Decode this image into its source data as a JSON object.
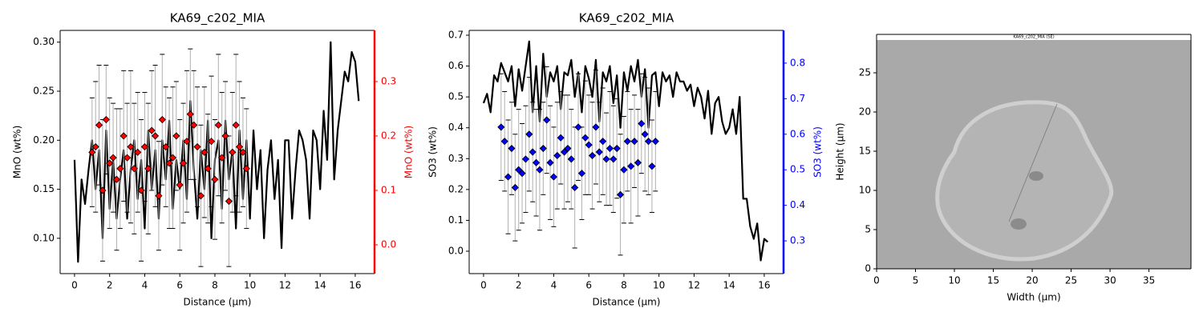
{
  "chart_data": [
    {
      "type": "line",
      "title": "KA69_c202_MIA",
      "xlabel": "Distance (µm)",
      "ylabel": "MnO (wt%)",
      "y2label": "MnO (wt%)",
      "xlim": [
        -0.82,
        17.1
      ],
      "ylim": [
        0.064,
        0.312
      ],
      "y2lim": [
        -0.053,
        0.394
      ],
      "xticks": [
        0,
        2,
        4,
        6,
        8,
        10,
        12,
        14,
        16
      ],
      "yticks": [
        {
          "value": 0.1,
          "label": "0.10"
        },
        0.15,
        {
          "value": 0.2,
          "label": "0.20"
        },
        0.25,
        {
          "value": 0.3,
          "label": "0.30"
        }
      ],
      "y2ticks": [
        {
          "value": 0,
          "label": "0.0"
        },
        0.1,
        0.2,
        0.3
      ],
      "series": [
        {
          "color": "#000000",
          "x": [
            0,
            0.2,
            0.4,
            0.6,
            0.8,
            1,
            1.2,
            1.4,
            1.6,
            1.8,
            2,
            2.2,
            2.4,
            2.6,
            2.8,
            3,
            3.2,
            3.4,
            3.6,
            3.8,
            4,
            4.2,
            4.4,
            4.6,
            4.8,
            5,
            5.2,
            5.4,
            5.6,
            5.8,
            6,
            6.2,
            6.4,
            6.6,
            6.8,
            7,
            7.2,
            7.4,
            7.6,
            7.8,
            8,
            8.2,
            8.4,
            8.6,
            8.8,
            9,
            9.2,
            9.4,
            9.6,
            9.8,
            10,
            10.2,
            10.4,
            10.6,
            10.8,
            11,
            11.2,
            11.4,
            11.6,
            11.8,
            12,
            12.2,
            12.4,
            12.6,
            12.8,
            13,
            13.2,
            13.4,
            13.6,
            13.8,
            14,
            14.2,
            14.4,
            14.6,
            14.8,
            15,
            15.2,
            15.4,
            15.6,
            15.8,
            16,
            16.2
          ],
          "values": [
            0.18,
            0.076,
            0.16,
            0.135,
            0.17,
            0.2,
            0.15,
            0.19,
            0.1,
            0.21,
            0.13,
            0.18,
            0.12,
            0.16,
            0.19,
            0.12,
            0.17,
            0.2,
            0.14,
            0.18,
            0.11,
            0.21,
            0.15,
            0.19,
            0.12,
            0.2,
            0.16,
            0.22,
            0.13,
            0.18,
            0.15,
            0.2,
            0.14,
            0.24,
            0.17,
            0.12,
            0.19,
            0.15,
            0.22,
            0.1,
            0.18,
            0.2,
            0.13,
            0.22,
            0.16,
            0.19,
            0.11,
            0.21,
            0.14,
            0.2,
            0.12,
            0.21,
            0.15,
            0.19,
            0.1,
            0.17,
            0.2,
            0.14,
            0.18,
            0.09,
            0.2,
            0.2,
            0.12,
            0.17,
            0.21,
            0.2,
            0.18,
            0.12,
            0.21,
            0.2,
            0.15,
            0.23,
            0.18,
            0.3,
            0.16,
            0.21,
            0.24,
            0.27,
            0.26,
            0.29,
            0.28,
            0.24
          ]
        },
        {
          "color": "#ff0000",
          "axis": "y2",
          "marker": "diamond",
          "x": [
            1,
            1.2,
            1.4,
            1.6,
            1.8,
            2,
            2.2,
            2.4,
            2.6,
            2.8,
            3,
            3.2,
            3.4,
            3.6,
            3.8,
            4,
            4.2,
            4.4,
            4.6,
            4.8,
            5,
            5.2,
            5.4,
            5.6,
            5.8,
            6,
            6.2,
            6.4,
            6.6,
            6.8,
            7,
            7.2,
            7.4,
            7.6,
            7.8,
            8,
            8.2,
            8.4,
            8.6,
            8.8,
            9,
            9.2,
            9.4,
            9.6,
            9.8
          ],
          "values": [
            0.17,
            0.18,
            0.22,
            0.1,
            0.23,
            0.15,
            0.16,
            0.12,
            0.14,
            0.2,
            0.16,
            0.18,
            0.14,
            0.17,
            0.1,
            0.18,
            0.14,
            0.21,
            0.2,
            0.09,
            0.23,
            0.18,
            0.15,
            0.16,
            0.2,
            0.11,
            0.15,
            0.19,
            0.24,
            0.22,
            0.18,
            0.09,
            0.17,
            0.14,
            0.19,
            0.12,
            0.22,
            0.16,
            0.2,
            0.08,
            0.17,
            0.22,
            0.18,
            0.17,
            0.14
          ],
          "errors": [
            0.1,
            0.12,
            0.11,
            0.13,
            0.1,
            0.12,
            0.1,
            0.13,
            0.11,
            0.12,
            0.1,
            0.14,
            0.12,
            0.11,
            0.13,
            0.1,
            0.12,
            0.11,
            0.13,
            0.1,
            0.12,
            0.11,
            0.12,
            0.13,
            0.1,
            0.12,
            0.11,
            0.13,
            0.12,
            0.1,
            0.11,
            0.13,
            0.12,
            0.1,
            0.12,
            0.11,
            0.13,
            0.12,
            0.1,
            0.12,
            0.11,
            0.13,
            0.12,
            0.1,
            0.11
          ]
        }
      ]
    },
    {
      "type": "line",
      "title": "KA69_c202_MIA",
      "xlabel": "Distance (µm)",
      "ylabel": "SO3 (wt%)",
      "y2label": "SO3 (wt%)",
      "xlim": [
        -0.82,
        17.1
      ],
      "ylim": [
        -0.0726,
        0.7156
      ],
      "y2lim": [
        0.208,
        0.892
      ],
      "xticks": [
        0,
        2,
        4,
        6,
        8,
        10,
        12,
        14,
        16
      ],
      "yticks": [
        {
          "value": 0,
          "label": "0.0"
        },
        0.1,
        0.2,
        0.3,
        0.4,
        0.5,
        0.6,
        0.7
      ],
      "y2ticks": [
        0.3,
        0.4,
        0.5,
        0.6,
        0.7,
        0.8
      ],
      "series": [
        {
          "color": "#000000",
          "x": [
            0,
            0.2,
            0.4,
            0.6,
            0.8,
            1,
            1.2,
            1.4,
            1.6,
            1.8,
            2,
            2.2,
            2.4,
            2.6,
            2.8,
            3,
            3.2,
            3.4,
            3.6,
            3.8,
            4,
            4.2,
            4.4,
            4.6,
            4.8,
            5,
            5.2,
            5.4,
            5.6,
            5.8,
            6,
            6.2,
            6.4,
            6.6,
            6.8,
            7,
            7.2,
            7.4,
            7.6,
            7.8,
            8,
            8.2,
            8.4,
            8.6,
            8.8,
            9,
            9.2,
            9.4,
            9.6,
            9.8,
            10,
            10.2,
            10.4,
            10.6,
            10.8,
            11,
            11.2,
            11.4,
            11.6,
            11.8,
            12,
            12.2,
            12.4,
            12.6,
            12.8,
            13,
            13.2,
            13.4,
            13.6,
            13.8,
            14,
            14.2,
            14.4,
            14.6,
            14.8,
            15,
            15.2,
            15.4,
            15.6,
            15.8,
            16,
            16.2
          ],
          "values": [
            0.48,
            0.51,
            0.45,
            0.57,
            0.55,
            0.61,
            0.58,
            0.55,
            0.6,
            0.47,
            0.59,
            0.52,
            0.6,
            0.68,
            0.45,
            0.6,
            0.42,
            0.64,
            0.5,
            0.58,
            0.55,
            0.6,
            0.46,
            0.58,
            0.57,
            0.62,
            0.5,
            0.58,
            0.45,
            0.6,
            0.56,
            0.5,
            0.62,
            0.42,
            0.58,
            0.55,
            0.6,
            0.48,
            0.57,
            0.4,
            0.58,
            0.52,
            0.6,
            0.55,
            0.62,
            0.5,
            0.59,
            0.4,
            0.57,
            0.58,
            0.47,
            0.58,
            0.55,
            0.57,
            0.5,
            0.58,
            0.55,
            0.55,
            0.52,
            0.54,
            0.47,
            0.53,
            0.5,
            0.43,
            0.52,
            0.38,
            0.48,
            0.5,
            0.42,
            0.38,
            0.4,
            0.46,
            0.38,
            0.5,
            0.17,
            0.17,
            0.08,
            0.04,
            0.09,
            -0.03,
            0.04,
            0.03
          ]
        },
        {
          "color": "#0000ff",
          "axis": "y2",
          "marker": "diamond",
          "x": [
            1,
            1.2,
            1.4,
            1.6,
            1.8,
            2,
            2.2,
            2.4,
            2.6,
            2.8,
            3,
            3.2,
            3.4,
            3.6,
            3.8,
            4,
            4.2,
            4.4,
            4.6,
            4.8,
            5,
            5.2,
            5.4,
            5.6,
            5.8,
            6,
            6.2,
            6.4,
            6.6,
            6.8,
            7,
            7.2,
            7.4,
            7.6,
            7.8,
            8,
            8.2,
            8.4,
            8.6,
            8.8,
            9,
            9.2,
            9.4,
            9.6,
            9.8
          ],
          "values": [
            0.62,
            0.58,
            0.48,
            0.56,
            0.45,
            0.5,
            0.49,
            0.53,
            0.6,
            0.55,
            0.52,
            0.5,
            0.56,
            0.64,
            0.52,
            0.48,
            0.54,
            0.59,
            0.55,
            0.56,
            0.53,
            0.45,
            0.62,
            0.49,
            0.59,
            0.57,
            0.54,
            0.62,
            0.55,
            0.58,
            0.53,
            0.56,
            0.53,
            0.56,
            0.43,
            0.5,
            0.58,
            0.51,
            0.58,
            0.52,
            0.63,
            0.6,
            0.58,
            0.51,
            0.58
          ],
          "errors": [
            0.15,
            0.14,
            0.16,
            0.13,
            0.15,
            0.17,
            0.14,
            0.15,
            0.16,
            0.14,
            0.15,
            0.17,
            0.13,
            0.15,
            0.16,
            0.14,
            0.15,
            0.13,
            0.16,
            0.15,
            0.14,
            0.17,
            0.15,
            0.13,
            0.16,
            0.14,
            0.15,
            0.16,
            0.14,
            0.15,
            0.13,
            0.16,
            0.15,
            0.14,
            0.17,
            0.15,
            0.14,
            0.16,
            0.13,
            0.15,
            0.14,
            0.16,
            0.15,
            0.13,
            0.14
          ]
        }
      ]
    },
    {
      "type": "image",
      "image_label": "KA69_c202_MIA (SE)",
      "xlabel": "Width (µm)",
      "ylabel": "Height (µm)",
      "xlim": [
        0,
        40.4
      ],
      "ylim": [
        0,
        29.9
      ],
      "xticks": [
        0,
        5,
        10,
        15,
        20,
        25,
        30,
        35
      ],
      "yticks": [
        0,
        5,
        10,
        15,
        20,
        25
      ]
    }
  ]
}
